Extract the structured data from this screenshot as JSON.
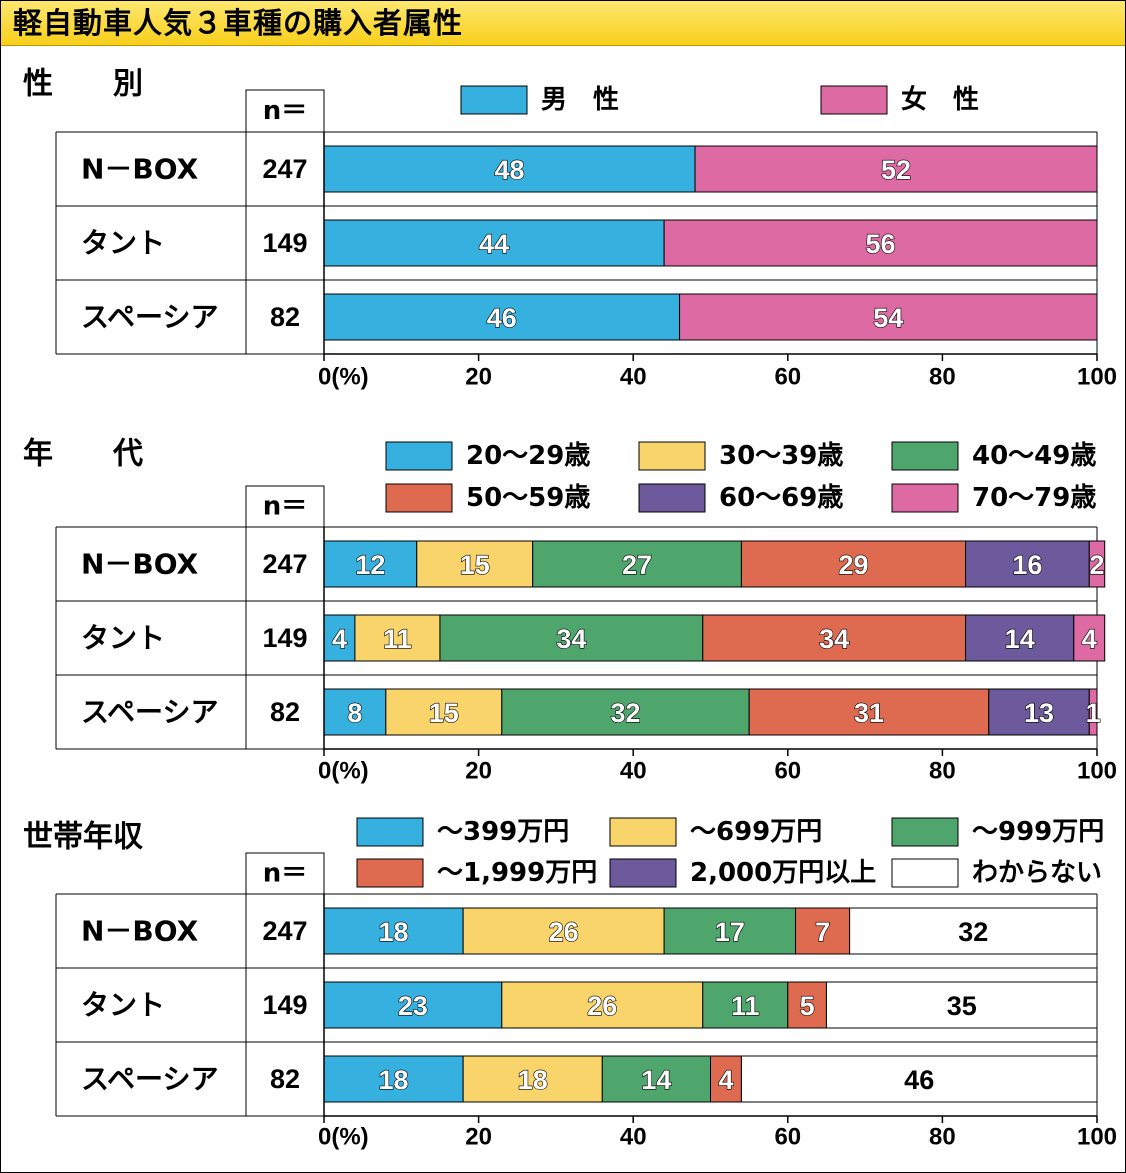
{
  "title": "軽自動車人気３車種の購入者属性",
  "n_header": "n＝",
  "x_tick_labels": [
    "0(%)",
    "20",
    "40",
    "60",
    "80",
    "100"
  ],
  "colors": {
    "gender": [
      "#35b0df",
      "#de6aa3"
    ],
    "age": [
      "#35b0df",
      "#f9d46b",
      "#4fa66d",
      "#de6a4f",
      "#6c5a9c",
      "#de6aa3"
    ],
    "income": [
      "#35b0df",
      "#f9d46b",
      "#4fa66d",
      "#de6a4f",
      "#6c5a9c",
      "#ffffff"
    ]
  },
  "chart_data": [
    {
      "type": "bar",
      "stacked": true,
      "orientation": "horizontal",
      "title": "性　　別",
      "categories": [
        "N－BOX",
        "タント",
        "スペーシア"
      ],
      "n": [
        247,
        149,
        82
      ],
      "xlim": [
        0,
        100
      ],
      "legend_position": "top",
      "series": [
        {
          "name": "男　性",
          "values": [
            48,
            44,
            46
          ]
        },
        {
          "name": "女　性",
          "values": [
            52,
            56,
            54
          ]
        }
      ]
    },
    {
      "type": "bar",
      "stacked": true,
      "orientation": "horizontal",
      "title": "年　　代",
      "categories": [
        "N－BOX",
        "タント",
        "スペーシア"
      ],
      "n": [
        247,
        149,
        82
      ],
      "xlim": [
        0,
        100
      ],
      "legend_position": "top",
      "series": [
        {
          "name": "20～29歳",
          "values": [
            12,
            4,
            8
          ]
        },
        {
          "name": "30～39歳",
          "values": [
            15,
            11,
            15
          ]
        },
        {
          "name": "40～49歳",
          "values": [
            27,
            34,
            32
          ]
        },
        {
          "name": "50～59歳",
          "values": [
            29,
            34,
            31
          ]
        },
        {
          "name": "60～69歳",
          "values": [
            16,
            14,
            13
          ]
        },
        {
          "name": "70～79歳",
          "values": [
            2,
            4,
            1
          ]
        }
      ]
    },
    {
      "type": "bar",
      "stacked": true,
      "orientation": "horizontal",
      "title": "世帯年収",
      "categories": [
        "N－BOX",
        "タント",
        "スペーシア"
      ],
      "n": [
        247,
        149,
        82
      ],
      "xlim": [
        0,
        100
      ],
      "legend_position": "top",
      "series": [
        {
          "name": "～399万円",
          "values": [
            18,
            23,
            18
          ]
        },
        {
          "name": "～699万円",
          "values": [
            26,
            26,
            18
          ]
        },
        {
          "name": "～999万円",
          "values": [
            17,
            11,
            14
          ]
        },
        {
          "name": "～1,999万円",
          "values": [
            7,
            5,
            4
          ]
        },
        {
          "name": "2,000万円以上",
          "values": [
            0,
            0,
            0
          ]
        },
        {
          "name": "わからない",
          "values": [
            32,
            35,
            46
          ]
        }
      ]
    }
  ]
}
